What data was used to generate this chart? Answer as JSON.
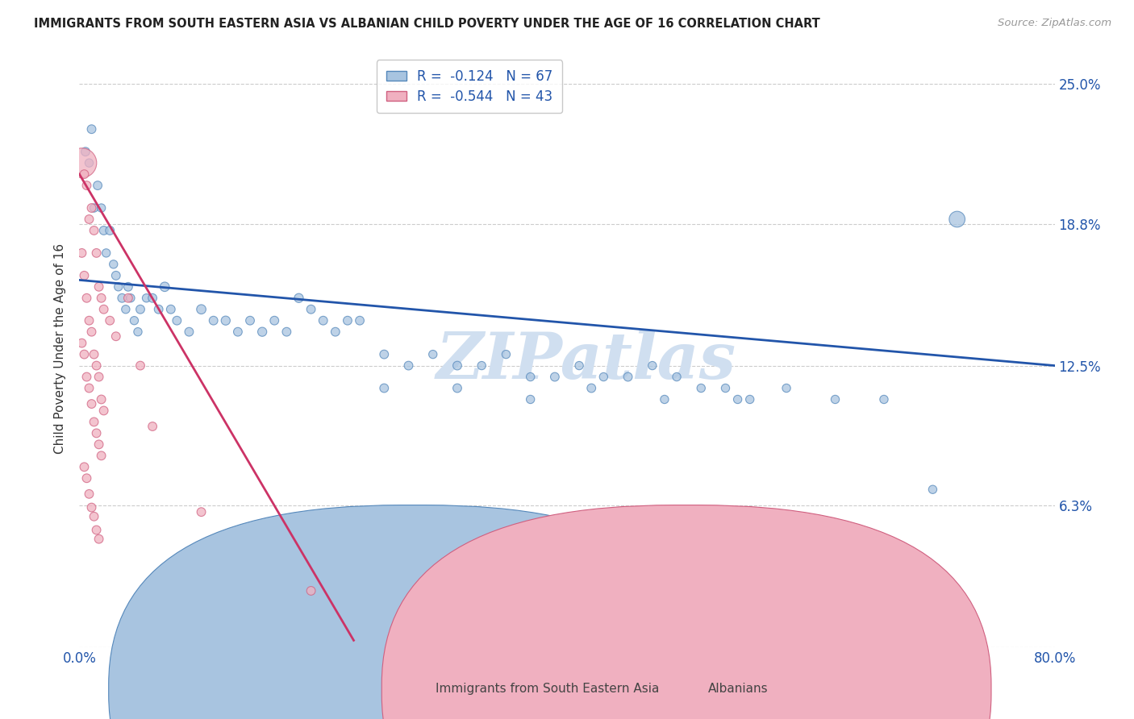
{
  "title": "IMMIGRANTS FROM SOUTH EASTERN ASIA VS ALBANIAN CHILD POVERTY UNDER THE AGE OF 16 CORRELATION CHART",
  "source": "Source: ZipAtlas.com",
  "ylabel": "Child Poverty Under the Age of 16",
  "yticks": [
    0.0,
    0.063,
    0.125,
    0.188,
    0.25
  ],
  "ytick_labels": [
    "",
    "6.3%",
    "12.5%",
    "18.8%",
    "25.0%"
  ],
  "xmin": 0.0,
  "xmax": 0.8,
  "ymin": 0.0,
  "ymax": 0.265,
  "blue_r": "-0.124",
  "blue_n": "67",
  "pink_r": "-0.544",
  "pink_n": "43",
  "blue_color": "#a8c4e0",
  "blue_edge": "#5588bb",
  "pink_color": "#f0b0c0",
  "pink_edge": "#d06080",
  "blue_line_color": "#2255aa",
  "pink_line_color": "#cc3366",
  "watermark_color": "#d0dff0",
  "background_color": "#ffffff",
  "blue_scatter_x": [
    0.005,
    0.008,
    0.01,
    0.012,
    0.015,
    0.018,
    0.02,
    0.022,
    0.025,
    0.028,
    0.03,
    0.032,
    0.035,
    0.038,
    0.04,
    0.042,
    0.045,
    0.048,
    0.05,
    0.055,
    0.06,
    0.065,
    0.07,
    0.075,
    0.08,
    0.09,
    0.1,
    0.11,
    0.12,
    0.13,
    0.14,
    0.15,
    0.16,
    0.17,
    0.18,
    0.19,
    0.2,
    0.21,
    0.22,
    0.23,
    0.25,
    0.27,
    0.29,
    0.31,
    0.33,
    0.35,
    0.37,
    0.39,
    0.41,
    0.43,
    0.45,
    0.47,
    0.49,
    0.51,
    0.53,
    0.55,
    0.58,
    0.62,
    0.66,
    0.7,
    0.25,
    0.31,
    0.37,
    0.42,
    0.48,
    0.54,
    0.72
  ],
  "blue_scatter_y": [
    0.22,
    0.215,
    0.23,
    0.195,
    0.205,
    0.195,
    0.185,
    0.175,
    0.185,
    0.17,
    0.165,
    0.16,
    0.155,
    0.15,
    0.16,
    0.155,
    0.145,
    0.14,
    0.15,
    0.155,
    0.155,
    0.15,
    0.16,
    0.15,
    0.145,
    0.14,
    0.15,
    0.145,
    0.145,
    0.14,
    0.145,
    0.14,
    0.145,
    0.14,
    0.155,
    0.15,
    0.145,
    0.14,
    0.145,
    0.145,
    0.13,
    0.125,
    0.13,
    0.125,
    0.125,
    0.13,
    0.12,
    0.12,
    0.125,
    0.12,
    0.12,
    0.125,
    0.12,
    0.115,
    0.115,
    0.11,
    0.115,
    0.11,
    0.11,
    0.07,
    0.115,
    0.115,
    0.11,
    0.115,
    0.11,
    0.11,
    0.19
  ],
  "blue_scatter_sizes": [
    60,
    55,
    60,
    55,
    60,
    55,
    60,
    55,
    60,
    55,
    60,
    55,
    60,
    55,
    60,
    55,
    55,
    55,
    60,
    55,
    60,
    60,
    70,
    60,
    60,
    60,
    70,
    60,
    65,
    60,
    60,
    65,
    60,
    60,
    65,
    60,
    60,
    60,
    60,
    60,
    60,
    60,
    55,
    60,
    55,
    55,
    55,
    60,
    55,
    55,
    60,
    55,
    55,
    55,
    55,
    55,
    55,
    55,
    55,
    55,
    60,
    60,
    55,
    60,
    55,
    55,
    200
  ],
  "pink_scatter_x": [
    0.002,
    0.004,
    0.006,
    0.008,
    0.01,
    0.012,
    0.014,
    0.016,
    0.018,
    0.02,
    0.002,
    0.004,
    0.006,
    0.008,
    0.01,
    0.012,
    0.014,
    0.016,
    0.018,
    0.02,
    0.002,
    0.004,
    0.006,
    0.008,
    0.01,
    0.012,
    0.014,
    0.016,
    0.018,
    0.004,
    0.006,
    0.008,
    0.01,
    0.012,
    0.014,
    0.016,
    0.025,
    0.03,
    0.04,
    0.05,
    0.06,
    0.1,
    0.19
  ],
  "pink_scatter_y": [
    0.215,
    0.21,
    0.205,
    0.19,
    0.195,
    0.185,
    0.175,
    0.16,
    0.155,
    0.15,
    0.175,
    0.165,
    0.155,
    0.145,
    0.14,
    0.13,
    0.125,
    0.12,
    0.11,
    0.105,
    0.135,
    0.13,
    0.12,
    0.115,
    0.108,
    0.1,
    0.095,
    0.09,
    0.085,
    0.08,
    0.075,
    0.068,
    0.062,
    0.058,
    0.052,
    0.048,
    0.145,
    0.138,
    0.155,
    0.125,
    0.098,
    0.06,
    0.025
  ],
  "pink_scatter_sizes": [
    700,
    60,
    60,
    60,
    60,
    60,
    60,
    60,
    60,
    60,
    60,
    60,
    60,
    60,
    60,
    60,
    60,
    60,
    60,
    60,
    60,
    60,
    60,
    60,
    60,
    60,
    60,
    60,
    60,
    60,
    60,
    60,
    60,
    60,
    60,
    60,
    60,
    60,
    60,
    60,
    60,
    60,
    60
  ],
  "blue_line_x": [
    0.0,
    0.8
  ],
  "blue_line_y": [
    0.163,
    0.125
  ],
  "pink_line_x": [
    0.0,
    0.225
  ],
  "pink_line_y": [
    0.21,
    0.003
  ]
}
